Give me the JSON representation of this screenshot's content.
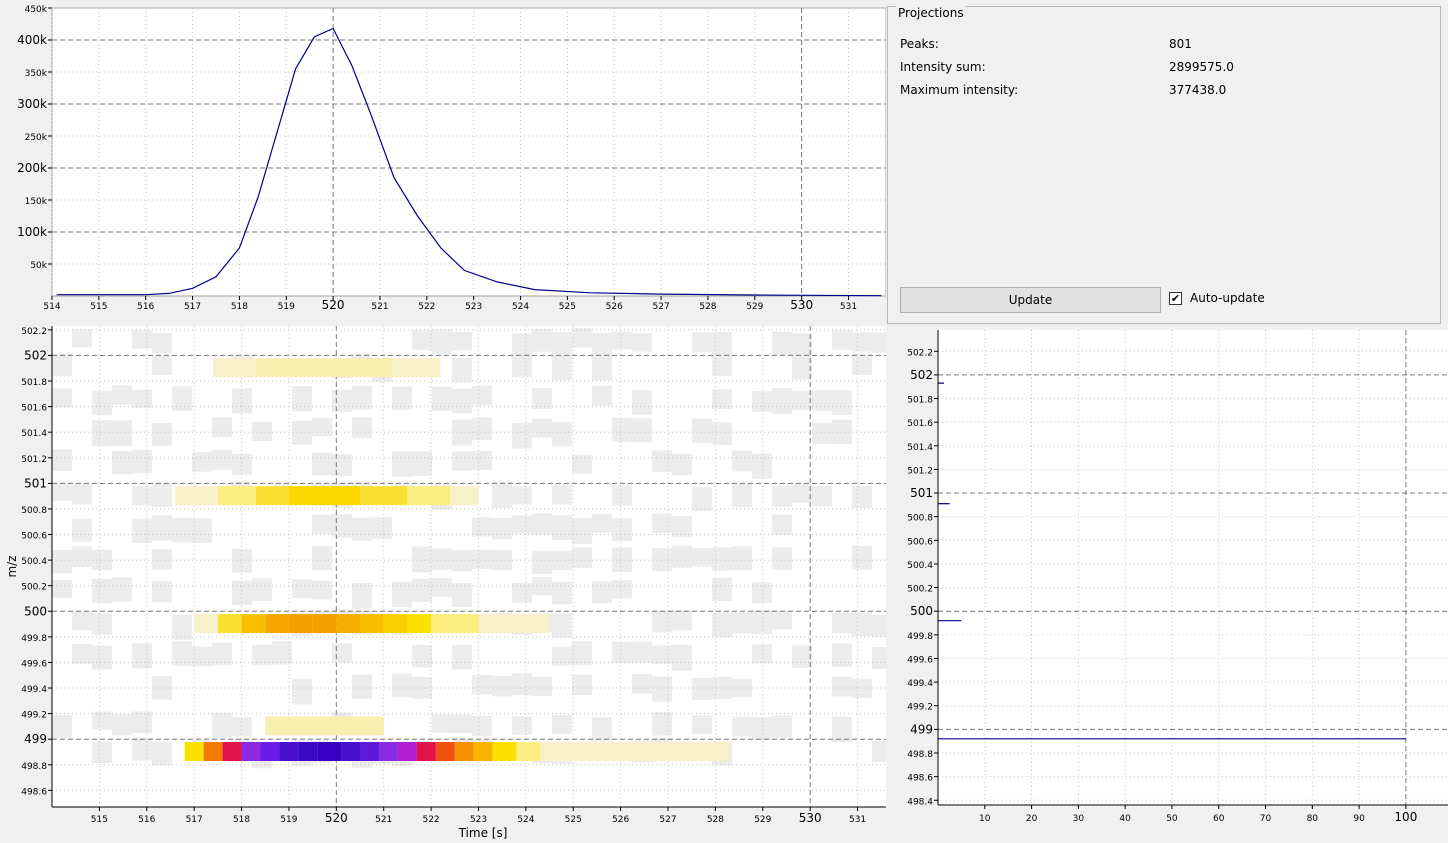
{
  "projections": {
    "title": "Projections",
    "peaks_label": "Peaks:",
    "peaks_value": "801",
    "sum_label": "Intensity sum:",
    "sum_value": "2899575.0",
    "max_label": "Maximum intensity:",
    "max_value": "377438.0",
    "update_label": "Update",
    "auto_update_label": "Auto-update",
    "auto_update_checked": true
  },
  "axes": {
    "x_label": "Time [s]",
    "y_label": "m/z"
  },
  "chart_data": [
    {
      "type": "line",
      "name": "time-projection",
      "x": [
        514.1,
        515,
        516,
        516.5,
        517,
        517.5,
        518,
        518.4,
        518.8,
        519.2,
        519.6,
        520.0,
        520.4,
        520.8,
        521.3,
        521.8,
        522.3,
        522.8,
        523.5,
        524.3,
        525.5,
        527,
        529,
        531.7
      ],
      "y": [
        2000,
        2000,
        2000,
        4000,
        12000,
        30000,
        75000,
        155000,
        255000,
        355000,
        405000,
        418000,
        360000,
        285000,
        185000,
        125000,
        75000,
        40000,
        22000,
        10000,
        5000,
        3000,
        1500,
        500
      ],
      "xlim": [
        514,
        531.8
      ],
      "ylim": [
        0,
        450000
      ],
      "x_ticks": [
        514,
        515,
        516,
        517,
        518,
        519,
        520,
        521,
        522,
        523,
        524,
        525,
        526,
        527,
        528,
        529,
        530,
        531
      ],
      "y_ticks": [
        50000,
        100000,
        150000,
        200000,
        250000,
        300000,
        350000,
        400000,
        450000
      ],
      "y_tick_labels": [
        "50k",
        "100k",
        "150k",
        "200k",
        "250k",
        "300k",
        "350k",
        "400k",
        "450k"
      ],
      "color": "#00008b"
    },
    {
      "type": "heatmap",
      "name": "peak-map",
      "xlim": [
        514,
        531.6
      ],
      "ylim": [
        498.47,
        502.23
      ],
      "x_ticks": [
        515,
        516,
        517,
        518,
        519,
        520,
        521,
        522,
        523,
        524,
        525,
        526,
        527,
        528,
        529,
        530,
        531
      ],
      "y_ticks": [
        498.6,
        498.8,
        499,
        499.2,
        499.4,
        499.6,
        499.8,
        500,
        500.2,
        500.4,
        500.6,
        500.8,
        501,
        501.2,
        501.4,
        501.6,
        501.8,
        502,
        502.2
      ],
      "rows": [
        {
          "mz": 498.9,
          "cells": [
            [
              516.8,
              517.2,
              "#fae100"
            ],
            [
              517.2,
              517.6,
              "#f57a00"
            ],
            [
              517.6,
              518.0,
              "#e0134a"
            ],
            [
              518.0,
              518.4,
              "#8a2be2"
            ],
            [
              518.4,
              518.8,
              "#6a1be8"
            ],
            [
              518.8,
              519.2,
              "#4a10d0"
            ],
            [
              519.2,
              519.6,
              "#3c08c8"
            ],
            [
              519.6,
              520.1,
              "#3800c4"
            ],
            [
              520.1,
              520.5,
              "#4a10d0"
            ],
            [
              520.5,
              520.9,
              "#5f18d8"
            ],
            [
              520.9,
              521.3,
              "#8a2be2"
            ],
            [
              521.3,
              521.7,
              "#b01ecf"
            ],
            [
              521.7,
              522.1,
              "#e0134a"
            ],
            [
              522.1,
              522.5,
              "#f05010"
            ],
            [
              522.5,
              522.9,
              "#f59000"
            ],
            [
              522.9,
              523.3,
              "#f8b400"
            ],
            [
              523.3,
              523.8,
              "#fae100"
            ],
            [
              523.8,
              524.3,
              "#fbee80"
            ],
            [
              524.3,
              528.3,
              "#f8f0c8"
            ]
          ]
        },
        {
          "mz": 499.1,
          "cells": [
            [
              518.5,
              521.0,
              "#f7eeb0"
            ]
          ]
        },
        {
          "mz": 499.9,
          "cells": [
            [
              517.0,
              517.5,
              "#f8f0c8"
            ],
            [
              517.5,
              518.0,
              "#fae030"
            ],
            [
              518.0,
              518.5,
              "#f8c000"
            ],
            [
              518.5,
              519.0,
              "#f7a800"
            ],
            [
              519.0,
              519.5,
              "#f7a000"
            ],
            [
              519.5,
              520.0,
              "#f5a000"
            ],
            [
              520.0,
              520.5,
              "#f7ac00"
            ],
            [
              520.5,
              521.0,
              "#f8bc00"
            ],
            [
              521.0,
              521.5,
              "#fad000"
            ],
            [
              521.5,
              522.0,
              "#fae100"
            ],
            [
              522.0,
              523.0,
              "#fbee80"
            ],
            [
              523.0,
              524.5,
              "#f8f0c8"
            ]
          ]
        },
        {
          "mz": 500.9,
          "cells": [
            [
              516.6,
              517.5,
              "#f8f0c8"
            ],
            [
              517.5,
              518.3,
              "#fbee80"
            ],
            [
              518.3,
              519.0,
              "#fae030"
            ],
            [
              519.0,
              520.5,
              "#fad800"
            ],
            [
              520.5,
              521.5,
              "#fae030"
            ],
            [
              521.5,
              522.4,
              "#fbee80"
            ],
            [
              522.4,
              523.0,
              "#f8f0c8"
            ]
          ]
        },
        {
          "mz": 501.9,
          "cells": [
            [
              517.4,
              518.3,
              "#f8f0c8"
            ],
            [
              518.3,
              521.2,
              "#f7eeb0"
            ],
            [
              521.2,
              522.2,
              "#f8f0c8"
            ]
          ]
        }
      ]
    },
    {
      "type": "line",
      "name": "mz-projection",
      "xlim": [
        0,
        109
      ],
      "ylim": [
        498.36,
        502.38
      ],
      "x_ticks": [
        10,
        20,
        30,
        40,
        50,
        60,
        70,
        80,
        90,
        100
      ],
      "y_ticks": [
        498.4,
        498.6,
        498.8,
        499,
        499.2,
        499.4,
        499.6,
        499.8,
        500,
        500.2,
        500.4,
        500.6,
        500.8,
        501,
        501.2,
        501.4,
        501.6,
        501.8,
        502,
        502.2
      ],
      "sticks": [
        {
          "mz": 501.93,
          "value": 1.3
        },
        {
          "mz": 500.91,
          "value": 2.5
        },
        {
          "mz": 499.92,
          "value": 5
        },
        {
          "mz": 498.92,
          "value": 100
        }
      ],
      "color": "#00008b"
    }
  ]
}
